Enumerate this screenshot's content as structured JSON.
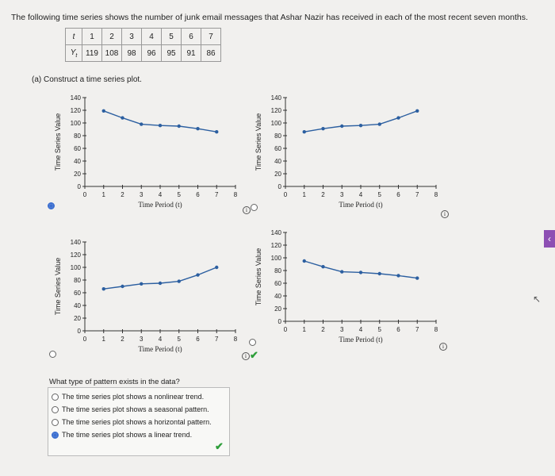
{
  "intro_text": "The following time series shows the number of junk email messages that Ashar Nazir has received in each of the most recent seven months.",
  "table": {
    "row1_header": "t",
    "row2_header": "Y",
    "row2_sub": "t",
    "periods": [
      "1",
      "2",
      "3",
      "4",
      "5",
      "6",
      "7"
    ],
    "values": [
      "119",
      "108",
      "98",
      "96",
      "95",
      "91",
      "86"
    ]
  },
  "part_a_label": "(a)  Construct a time series plot.",
  "graphs": [
    {
      "selected": true,
      "ylabel": "Time Series Value",
      "xlabel": "Time Period (t)",
      "y": [
        119,
        108,
        98,
        96,
        95,
        91,
        86
      ]
    },
    {
      "selected": false,
      "ylabel": "Time Series Value",
      "xlabel": "Time Period (t)",
      "y": [
        86,
        91,
        95,
        96,
        98,
        108,
        119
      ]
    },
    {
      "selected": false,
      "ylabel": "Time Series Value",
      "xlabel": "Time Period (t)",
      "y": [
        66,
        70,
        74,
        75,
        78,
        88,
        100
      ]
    },
    {
      "selected": false,
      "ylabel": "Time Series Value",
      "xlabel": "Time Period (t)",
      "y": [
        95,
        86,
        78,
        77,
        75,
        72,
        68
      ]
    }
  ],
  "y_ticks": [
    "0",
    "20",
    "40",
    "60",
    "80",
    "100",
    "120",
    "140"
  ],
  "x_ticks": [
    "0",
    "1",
    "2",
    "3",
    "4",
    "5",
    "6",
    "7",
    "8"
  ],
  "question": "What type of pattern exists in the data?",
  "options": [
    {
      "label": "The time series plot shows a nonlinear trend.",
      "selected": false
    },
    {
      "label": "The time series plot shows a seasonal pattern.",
      "selected": false
    },
    {
      "label": "The time series plot shows a horizontal pattern.",
      "selected": false
    },
    {
      "label": "The time series plot shows a linear trend.",
      "selected": true
    }
  ],
  "info_glyph": "i",
  "check_glyph": "✔",
  "colors": {
    "series": "#2c5fa0",
    "radio_selected": "#3c6fd0",
    "check": "#2e9e3a"
  }
}
